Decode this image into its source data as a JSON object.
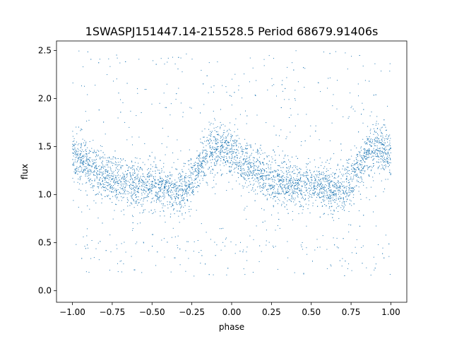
{
  "chart_data": {
    "type": "scatter",
    "title": "1SWASPJ151447.14-215528.5 Period 68679.91406s",
    "xlabel": "phase",
    "ylabel": "flux",
    "xlim": [
      -1.1,
      1.1
    ],
    "ylim": [
      -0.12,
      2.6
    ],
    "xticks": [
      -1.0,
      -0.75,
      -0.5,
      -0.25,
      0.0,
      0.25,
      0.5,
      0.75,
      1.0
    ],
    "xtick_labels": [
      "−1.00",
      "−0.75",
      "−0.50",
      "−0.25",
      "0.00",
      "0.25",
      "0.50",
      "0.75",
      "1.00"
    ],
    "yticks": [
      0.0,
      0.5,
      1.0,
      1.5,
      2.0,
      2.5
    ],
    "ytick_labels": [
      "0.0",
      "0.5",
      "1.0",
      "1.5",
      "2.0",
      "2.5"
    ],
    "grid": false,
    "legend": "none",
    "marker_color": "#1f77b4",
    "series": [
      {
        "x_range": [
          -1.0,
          1.0
        ],
        "periodic_in_x": 1.0,
        "mean_flux_profile": {
          "phase": [
            0.0,
            0.05,
            0.1,
            0.2,
            0.3,
            0.4,
            0.5,
            0.6,
            0.7,
            0.75,
            0.8,
            0.85,
            0.9,
            0.95,
            1.0
          ],
          "flux": [
            1.42,
            1.35,
            1.29,
            1.2,
            1.14,
            1.11,
            1.09,
            1.06,
            1.03,
            1.14,
            1.3,
            1.42,
            1.5,
            1.47,
            1.42
          ]
        },
        "scatter_core_sd": 0.12,
        "outlier_flux_range": [
          0.0,
          2.5
        ],
        "secondary_low_branch_flux": [
          0.15,
          0.55
        ]
      }
    ]
  }
}
